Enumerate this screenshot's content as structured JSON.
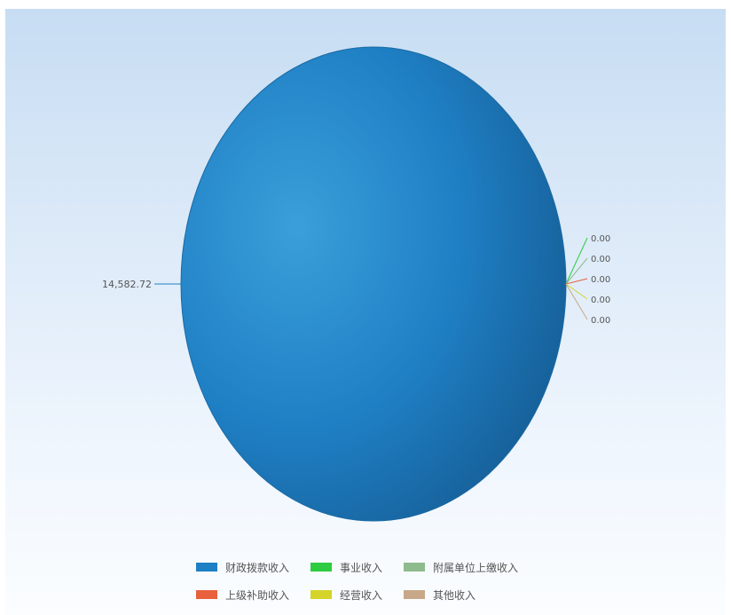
{
  "chart_data": {
    "type": "pie",
    "title": "",
    "legend_position": "bottom",
    "series": [
      {
        "name": "财政拨款收入",
        "value": 14582.72,
        "label": "14,582.72",
        "color": "#1f7fc4"
      },
      {
        "name": "事业收入",
        "value": 0.0,
        "label": "0.00",
        "color": "#2ecc40"
      },
      {
        "name": "附属单位上缴收入",
        "value": 0.0,
        "label": "0.00",
        "color": "#8fbc8f"
      },
      {
        "name": "上级补助收入",
        "value": 0.0,
        "label": "0.00",
        "color": "#e8603c"
      },
      {
        "name": "经营收入",
        "value": 0.0,
        "label": "0.00",
        "color": "#d4d42a"
      },
      {
        "name": "其他收入",
        "value": 0.0,
        "label": "0.00",
        "color": "#c8a888"
      }
    ]
  }
}
